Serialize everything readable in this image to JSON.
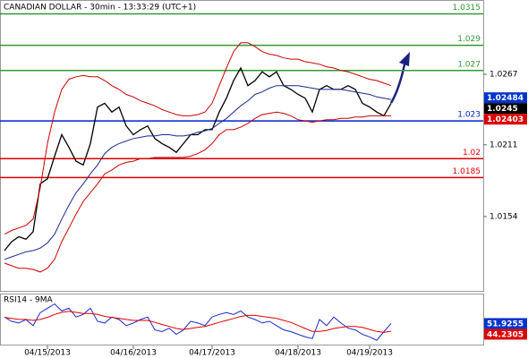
{
  "chart_data": {
    "type": "financial",
    "title": "CANADIAN DOLLAR - 30min - 13:33:29 (UTC+1)",
    "categories": [
      null,
      null,
      null,
      null,
      null,
      null,
      "04/15/2013",
      null,
      null,
      null,
      null,
      null,
      null,
      null,
      null,
      null,
      null,
      null,
      "04/16/2013",
      null,
      null,
      null,
      null,
      null,
      null,
      null,
      null,
      null,
      null,
      "04/17/2013",
      null,
      null,
      null,
      null,
      null,
      null,
      null,
      null,
      null,
      null,
      null,
      "04/18/2013",
      null,
      null,
      null,
      null,
      null,
      null,
      null,
      null,
      null,
      "04/19/2013",
      null,
      null,
      null
    ],
    "ylim": [
      1.0095,
      1.0326
    ],
    "yticks": [
      1.0267,
      1.0211,
      1.0154
    ],
    "series": [
      {
        "color": "#000000",
        "values": [
          1.0127,
          1.0134,
          1.0138,
          1.0136,
          1.0142,
          1.018,
          1.0184,
          1.0202,
          1.0219,
          1.0209,
          1.0198,
          1.0195,
          1.0212,
          1.0241,
          1.0244,
          1.0237,
          1.0241,
          1.0226,
          1.0219,
          1.0223,
          1.0226,
          1.0216,
          1.0212,
          1.0209,
          1.0205,
          1.0212,
          1.0219,
          1.0219,
          1.0223,
          1.0223,
          1.0237,
          1.0248,
          1.0262,
          1.0272,
          1.0258,
          1.0262,
          1.0269,
          1.0265,
          1.0269,
          1.0258,
          1.0255,
          1.0251,
          1.0248,
          1.0237,
          1.0255,
          1.0258,
          1.0255,
          1.0255,
          1.0258,
          1.0255,
          1.0244,
          1.0241,
          1.0237,
          1.0234,
          1.0244
        ]
      },
      {
        "color": "#1a2a8c",
        "values": [
          1.012,
          1.0122,
          1.0124,
          1.0126,
          1.0127,
          1.0129,
          1.0133,
          1.014,
          1.0152,
          1.0163,
          1.0173,
          1.018,
          1.0188,
          1.0195,
          1.0204,
          1.0209,
          1.0212,
          1.0214,
          1.0216,
          1.0217,
          1.0218,
          1.0218,
          1.0219,
          1.0219,
          1.0218,
          1.0218,
          1.0219,
          1.0221,
          1.0222,
          1.0224,
          1.0228,
          1.0232,
          1.0237,
          1.0242,
          1.0246,
          1.0251,
          1.0253,
          1.0256,
          1.0258,
          1.0258,
          1.0258,
          1.0258,
          1.0257,
          1.0256,
          1.0255,
          1.0255,
          1.0255,
          1.0255,
          1.0254,
          1.0253,
          1.0252,
          1.0251,
          1.0249,
          1.0248,
          1.0247
        ]
      },
      {
        "color": "#cc0000",
        "values": [
          1.014,
          1.0143,
          1.0145,
          1.0147,
          1.0152,
          1.0177,
          1.0212,
          1.0237,
          1.0255,
          1.0263,
          1.0265,
          1.0266,
          1.0265,
          1.0265,
          1.0262,
          1.0258,
          1.0255,
          1.0251,
          1.0249,
          1.0246,
          1.0244,
          1.0242,
          1.0239,
          1.0237,
          1.0235,
          1.0234,
          1.0234,
          1.0235,
          1.0237,
          1.0244,
          1.0258,
          1.0272,
          1.0285,
          1.0292,
          1.0292,
          1.0289,
          1.0285,
          1.0283,
          1.0282,
          1.028,
          1.0279,
          1.0279,
          1.0277,
          1.0276,
          1.0275,
          1.0273,
          1.0272,
          1.027,
          1.0269,
          1.0267,
          1.0265,
          1.0263,
          1.0262,
          1.026,
          1.0258
        ]
      },
      {
        "color": "#cc0000",
        "values": [
          1.0117,
          1.0115,
          1.0113,
          1.0113,
          1.0112,
          1.011,
          1.0113,
          1.012,
          1.0134,
          1.0145,
          1.0156,
          1.0166,
          1.0173,
          1.018,
          1.0188,
          1.0191,
          1.0195,
          1.0197,
          1.0198,
          1.02,
          1.02,
          1.0201,
          1.0201,
          1.0201,
          1.0201,
          1.0201,
          1.0202,
          1.0204,
          1.0207,
          1.0212,
          1.0219,
          1.0223,
          1.0223,
          1.0225,
          1.0228,
          1.0232,
          1.0235,
          1.0236,
          1.0237,
          1.0236,
          1.0234,
          1.0231,
          1.023,
          1.0229,
          1.023,
          1.0231,
          1.0231,
          1.0232,
          1.0232,
          1.0233,
          1.0233,
          1.0234,
          1.0234,
          1.0234,
          1.0234
        ]
      }
    ],
    "levels": [
      {
        "value": 1.0315,
        "color": "#339933"
      },
      {
        "value": 1.029,
        "color": "#339933"
      },
      {
        "value": 1.027,
        "color": "#339933"
      },
      {
        "value": 1.023,
        "color": "#0022cc"
      },
      {
        "value": 1.02,
        "color": "#dd0000"
      },
      {
        "value": 1.0185,
        "color": "#dd0000"
      }
    ],
    "price_markers": [
      {
        "value": 1.02484,
        "color": "#0033cc"
      },
      {
        "value": 1.0245,
        "color": "#000000"
      },
      {
        "value": 1.02403,
        "color": "#dd0000"
      }
    ],
    "rsi": {
      "label": "RSI14 - 9MA",
      "ylim": [
        30,
        80
      ],
      "series": [
        {
          "color": "#1a2acc",
          "values": [
            58.4,
            54.1,
            52.4,
            55.9,
            49.8,
            62.8,
            67.1,
            71.4,
            64.5,
            67.1,
            58.4,
            61.0,
            67.1,
            54.1,
            52.4,
            58.4,
            55.9,
            49.8,
            52.4,
            55.9,
            58.4,
            45.5,
            43.8,
            47.2,
            41.2,
            45.5,
            54.1,
            52.4,
            49.8,
            58.4,
            61.0,
            62.8,
            61.0,
            64.5,
            58.4,
            55.9,
            52.4,
            54.1,
            49.8,
            45.5,
            43.8,
            41.2,
            38.6,
            36.9,
            55.9,
            49.8,
            58.4,
            52.4,
            47.2,
            45.5,
            41.2,
            38.6,
            35.2,
            43.8,
            51.9255
          ]
        },
        {
          "color": "#dd0000",
          "values": [
            58,
            57,
            56,
            56,
            55,
            56,
            58,
            61,
            63,
            64,
            63,
            62,
            62,
            61,
            59,
            58,
            57,
            56,
            55,
            55,
            55,
            53,
            51,
            49,
            47,
            46,
            47,
            48,
            49,
            51,
            53,
            55,
            57,
            59,
            60,
            60,
            59,
            58,
            57,
            55,
            53,
            50,
            47,
            44,
            44,
            45,
            47,
            48,
            49,
            49,
            48,
            46,
            44,
            43,
            44.2305
          ]
        }
      ],
      "markers": [
        {
          "value": 51.9255,
          "color": "#0033cc"
        },
        {
          "value": 44.2305,
          "color": "#dd0000"
        }
      ]
    }
  }
}
